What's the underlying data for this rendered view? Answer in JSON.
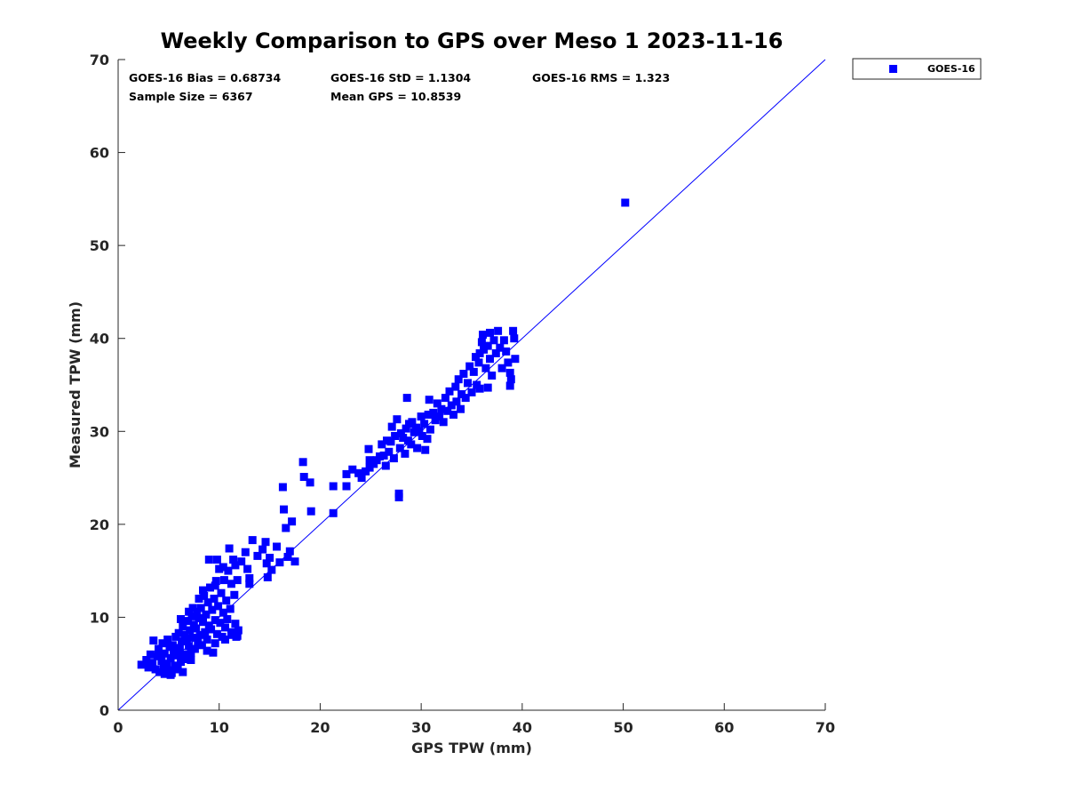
{
  "chart_data": {
    "type": "scatter",
    "title": "Weekly Comparison to GPS over Meso 1 2023-11-16",
    "xlabel": "GPS TPW (mm)",
    "ylabel": "Measured TPW (mm)",
    "xlim": [
      0,
      70
    ],
    "ylim": [
      0,
      70
    ],
    "xticks": [
      "0",
      "10",
      "20",
      "30",
      "40",
      "50",
      "60",
      "70"
    ],
    "yticks": [
      "0",
      "10",
      "20",
      "30",
      "40",
      "50",
      "60",
      "70"
    ],
    "reference_line": {
      "from": [
        0,
        0
      ],
      "to": [
        70,
        70
      ]
    },
    "stats": {
      "bias": "GOES-16 Bias = 0.68734",
      "std": "GOES-16 StD = 1.1304",
      "rms": "GOES-16 RMS = 1.323",
      "sample_size": "Sample Size = 6367",
      "mean_gps": "Mean GPS = 10.8539"
    },
    "legend": {
      "label": "GOES-16",
      "placement": "outside-top-right"
    },
    "series": [
      {
        "name": "GOES-16",
        "color": "#0000ff",
        "marker": "square",
        "points": [
          [
            2.3,
            4.9
          ],
          [
            2.8,
            5.4
          ],
          [
            3.0,
            4.6
          ],
          [
            3.2,
            6.0
          ],
          [
            3.4,
            5.1
          ],
          [
            3.5,
            7.5
          ],
          [
            3.7,
            4.4
          ],
          [
            3.9,
            5.8
          ],
          [
            4.0,
            6.6
          ],
          [
            4.1,
            4.1
          ],
          [
            4.3,
            5.3
          ],
          [
            4.4,
            7.2
          ],
          [
            4.5,
            4.7
          ],
          [
            4.6,
            6.1
          ],
          [
            4.8,
            5.0
          ],
          [
            4.9,
            7.6
          ],
          [
            5.0,
            4.3
          ],
          [
            5.1,
            6.8
          ],
          [
            5.2,
            5.6
          ],
          [
            5.3,
            4.0
          ],
          [
            5.4,
            7.0
          ],
          [
            5.5,
            6.3
          ],
          [
            5.6,
            4.8
          ],
          [
            5.7,
            7.9
          ],
          [
            5.8,
            5.9
          ],
          [
            5.9,
            4.4
          ],
          [
            6.0,
            8.3
          ],
          [
            6.1,
            6.7
          ],
          [
            6.2,
            5.2
          ],
          [
            6.3,
            7.4
          ],
          [
            6.4,
            9.0
          ],
          [
            6.5,
            6.0
          ],
          [
            6.6,
            8.1
          ],
          [
            6.7,
            5.5
          ],
          [
            6.8,
            7.7
          ],
          [
            6.9,
            9.6
          ],
          [
            7.0,
            6.9
          ],
          [
            7.1,
            8.6
          ],
          [
            7.2,
            6.2
          ],
          [
            7.3,
            10.1
          ],
          [
            7.4,
            7.8
          ],
          [
            7.5,
            9.2
          ],
          [
            7.6,
            6.6
          ],
          [
            7.7,
            8.8
          ],
          [
            7.8,
            10.6
          ],
          [
            7.9,
            7.3
          ],
          [
            8.0,
            9.9
          ],
          [
            8.1,
            8.1
          ],
          [
            8.2,
            11.0
          ],
          [
            8.3,
            7.0
          ],
          [
            8.4,
            9.5
          ],
          [
            8.5,
            12.3
          ],
          [
            8.6,
            8.4
          ],
          [
            8.7,
            10.3
          ],
          [
            8.8,
            7.6
          ],
          [
            8.9,
            11.6
          ],
          [
            9.0,
            9.1
          ],
          [
            9.1,
            13.2
          ],
          [
            9.2,
            8.7
          ],
          [
            9.3,
            10.8
          ],
          [
            9.4,
            6.2
          ],
          [
            9.5,
            12.0
          ],
          [
            9.6,
            9.7
          ],
          [
            9.7,
            13.9
          ],
          [
            9.8,
            8.2
          ],
          [
            9.9,
            11.2
          ],
          [
            10.0,
            15.2
          ],
          [
            10.1,
            9.4
          ],
          [
            10.2,
            12.6
          ],
          [
            10.3,
            7.9
          ],
          [
            10.4,
            10.5
          ],
          [
            10.5,
            14.0
          ],
          [
            10.6,
            8.9
          ],
          [
            10.7,
            11.8
          ],
          [
            10.8,
            9.8
          ],
          [
            10.9,
            15.0
          ],
          [
            11.0,
            17.4
          ],
          [
            11.1,
            10.9
          ],
          [
            11.2,
            13.6
          ],
          [
            11.3,
            8.4
          ],
          [
            11.4,
            16.2
          ],
          [
            11.5,
            12.4
          ],
          [
            11.6,
            9.3
          ],
          [
            11.7,
            7.9
          ],
          [
            11.8,
            14.0
          ],
          [
            11.9,
            8.6
          ],
          [
            9.0,
            16.2
          ],
          [
            9.8,
            16.2
          ],
          [
            10.4,
            15.4
          ],
          [
            11.6,
            15.6
          ],
          [
            6.2,
            9.8
          ],
          [
            7.0,
            10.6
          ],
          [
            7.4,
            11.0
          ],
          [
            8.0,
            12.0
          ],
          [
            8.4,
            12.9
          ],
          [
            9.6,
            13.4
          ],
          [
            12.2,
            16.0
          ],
          [
            12.8,
            15.2
          ],
          [
            13.0,
            14.2
          ],
          [
            13.3,
            18.3
          ],
          [
            12.6,
            17.0
          ],
          [
            13.0,
            13.6
          ],
          [
            13.8,
            16.6
          ],
          [
            14.3,
            17.3
          ],
          [
            14.7,
            15.8
          ],
          [
            14.8,
            14.3
          ],
          [
            14.6,
            18.1
          ],
          [
            15.0,
            16.4
          ],
          [
            15.2,
            15.1
          ],
          [
            15.7,
            17.6
          ],
          [
            16.0,
            15.9
          ],
          [
            16.3,
            24.0
          ],
          [
            16.4,
            21.6
          ],
          [
            16.6,
            19.6
          ],
          [
            16.8,
            16.5
          ],
          [
            17.0,
            17.1
          ],
          [
            17.2,
            20.3
          ],
          [
            17.5,
            16.0
          ],
          [
            18.3,
            26.7
          ],
          [
            18.4,
            25.1
          ],
          [
            19.0,
            24.5
          ],
          [
            19.1,
            21.4
          ],
          [
            21.3,
            24.1
          ],
          [
            21.3,
            21.2
          ],
          [
            22.6,
            24.1
          ],
          [
            22.6,
            25.4
          ],
          [
            23.2,
            25.9
          ],
          [
            23.8,
            25.5
          ],
          [
            24.1,
            25.0
          ],
          [
            24.5,
            25.7
          ],
          [
            24.9,
            26.1
          ],
          [
            24.8,
            28.1
          ],
          [
            24.9,
            26.9
          ],
          [
            25.3,
            26.5
          ],
          [
            25.6,
            26.9
          ],
          [
            25.9,
            27.3
          ],
          [
            26.1,
            28.6
          ],
          [
            26.3,
            27.4
          ],
          [
            26.5,
            26.3
          ],
          [
            26.6,
            29.0
          ],
          [
            26.8,
            27.8
          ],
          [
            27.0,
            28.9
          ],
          [
            27.1,
            30.5
          ],
          [
            27.3,
            27.1
          ],
          [
            27.4,
            29.5
          ],
          [
            27.6,
            31.3
          ],
          [
            27.8,
            22.9
          ],
          [
            27.8,
            23.3
          ],
          [
            27.9,
            28.2
          ],
          [
            28.0,
            29.8
          ],
          [
            28.2,
            29.3
          ],
          [
            28.4,
            27.6
          ],
          [
            28.5,
            30.3
          ],
          [
            28.7,
            29.0
          ],
          [
            28.8,
            30.8
          ],
          [
            29.0,
            28.6
          ],
          [
            29.1,
            31.0
          ],
          [
            29.3,
            29.9
          ],
          [
            29.5,
            30.4
          ],
          [
            29.6,
            28.2
          ],
          [
            29.8,
            30.0
          ],
          [
            30.0,
            31.6
          ],
          [
            30.1,
            29.5
          ],
          [
            30.3,
            30.8
          ],
          [
            30.4,
            28.0
          ],
          [
            30.6,
            29.2
          ],
          [
            30.7,
            31.8
          ],
          [
            30.8,
            33.4
          ],
          [
            30.9,
            30.2
          ],
          [
            31.2,
            32.0
          ],
          [
            31.4,
            31.2
          ],
          [
            31.6,
            33.0
          ],
          [
            31.8,
            31.6
          ],
          [
            32.0,
            32.4
          ],
          [
            32.2,
            31.0
          ],
          [
            32.4,
            33.6
          ],
          [
            32.6,
            32.2
          ],
          [
            32.8,
            34.3
          ],
          [
            33.0,
            32.8
          ],
          [
            33.2,
            31.8
          ],
          [
            33.4,
            34.8
          ],
          [
            33.5,
            33.2
          ],
          [
            33.7,
            35.6
          ],
          [
            33.9,
            32.4
          ],
          [
            34.0,
            34.0
          ],
          [
            34.2,
            36.2
          ],
          [
            34.4,
            33.6
          ],
          [
            34.6,
            35.2
          ],
          [
            34.8,
            37.0
          ],
          [
            35.0,
            34.2
          ],
          [
            35.2,
            36.4
          ],
          [
            35.4,
            38.0
          ],
          [
            35.5,
            35.0
          ],
          [
            35.7,
            37.4
          ],
          [
            35.8,
            34.6
          ],
          [
            36.0,
            39.6
          ],
          [
            36.1,
            40.4
          ],
          [
            36.2,
            38.8
          ],
          [
            36.4,
            36.8
          ],
          [
            36.6,
            39.2
          ],
          [
            36.8,
            37.8
          ],
          [
            37.0,
            36.0
          ],
          [
            37.2,
            39.8
          ],
          [
            37.4,
            38.4
          ],
          [
            37.6,
            40.8
          ],
          [
            37.8,
            39.0
          ],
          [
            38.0,
            36.8
          ],
          [
            38.2,
            39.8
          ],
          [
            38.4,
            38.6
          ],
          [
            38.6,
            37.4
          ],
          [
            38.8,
            36.3
          ],
          [
            38.8,
            34.9
          ],
          [
            38.9,
            35.6
          ],
          [
            39.1,
            40.8
          ],
          [
            39.2,
            40.0
          ],
          [
            39.3,
            37.8
          ],
          [
            36.6,
            34.7
          ],
          [
            35.8,
            38.4
          ],
          [
            36.8,
            40.6
          ],
          [
            28.6,
            33.6
          ],
          [
            50.2,
            54.6
          ],
          [
            5.2,
            3.8
          ],
          [
            4.6,
            3.9
          ],
          [
            6.4,
            4.1
          ],
          [
            7.2,
            5.4
          ],
          [
            8.8,
            6.4
          ],
          [
            9.6,
            7.2
          ],
          [
            10.6,
            7.6
          ],
          [
            11.2,
            8.1
          ],
          [
            11.8,
            8.0
          ]
        ]
      }
    ]
  }
}
